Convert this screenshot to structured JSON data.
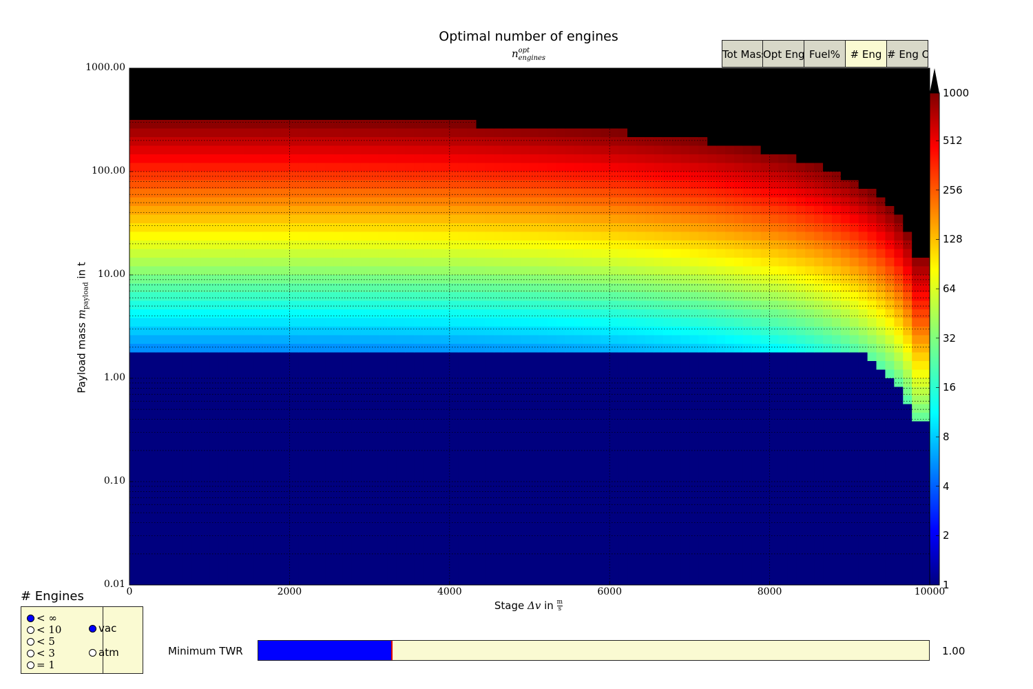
{
  "chart_data": {
    "type": "heatmap",
    "title": "Optimal number of engines",
    "subtitle": {
      "base": "n",
      "sup": "opt",
      "sub": "engines"
    },
    "xlabel": {
      "prefix": "Stage ",
      "symbol": "Δv",
      "suffix": " in ",
      "unit_num": "m",
      "unit_den": "s"
    },
    "ylabel": {
      "prefix": "Payload mass ",
      "symbol": "m",
      "sub": "payload",
      "suffix": " in t"
    },
    "x_range": [
      0,
      10000
    ],
    "y_range": [
      0.01,
      1000
    ],
    "y_scale": "log",
    "grid": true,
    "x_ticks": [
      0,
      2000,
      4000,
      6000,
      8000,
      10000
    ],
    "y_ticks": [
      "1000.00",
      "100.00",
      "10.00",
      "1.00",
      "0.10",
      "0.01"
    ],
    "colorbar": {
      "scale": "log2",
      "colormap": "jet",
      "ticks": [
        1,
        2,
        4,
        8,
        16,
        32,
        64,
        128,
        256,
        512,
        1000
      ],
      "extend": "max"
    }
  },
  "tabs": [
    {
      "label": "Tot Mass",
      "active": false
    },
    {
      "label": "Opt Eng",
      "active": false
    },
    {
      "label": "Fuel%",
      "active": false
    },
    {
      "label": "# Eng",
      "active": true
    },
    {
      "label": "# Eng O",
      "active": false
    }
  ],
  "engines_panel": {
    "title": "# Engines",
    "limits": [
      {
        "label": "< ∞",
        "selected": true
      },
      {
        "label": "< 10",
        "selected": false
      },
      {
        "label": "< 5",
        "selected": false
      },
      {
        "label": "< 3",
        "selected": false
      },
      {
        "label": "= 1",
        "selected": false
      }
    ],
    "environments": [
      {
        "label": "vac",
        "selected": true
      },
      {
        "label": "atm",
        "selected": false
      }
    ]
  },
  "twr_slider": {
    "label": "Minimum TWR",
    "value_text": "1.00",
    "fill_fraction": 0.2
  },
  "colors": {
    "slider_fill": "#0000ff",
    "panel_bg": "#fafad2",
    "tab_bg": "#d8d8c8"
  }
}
